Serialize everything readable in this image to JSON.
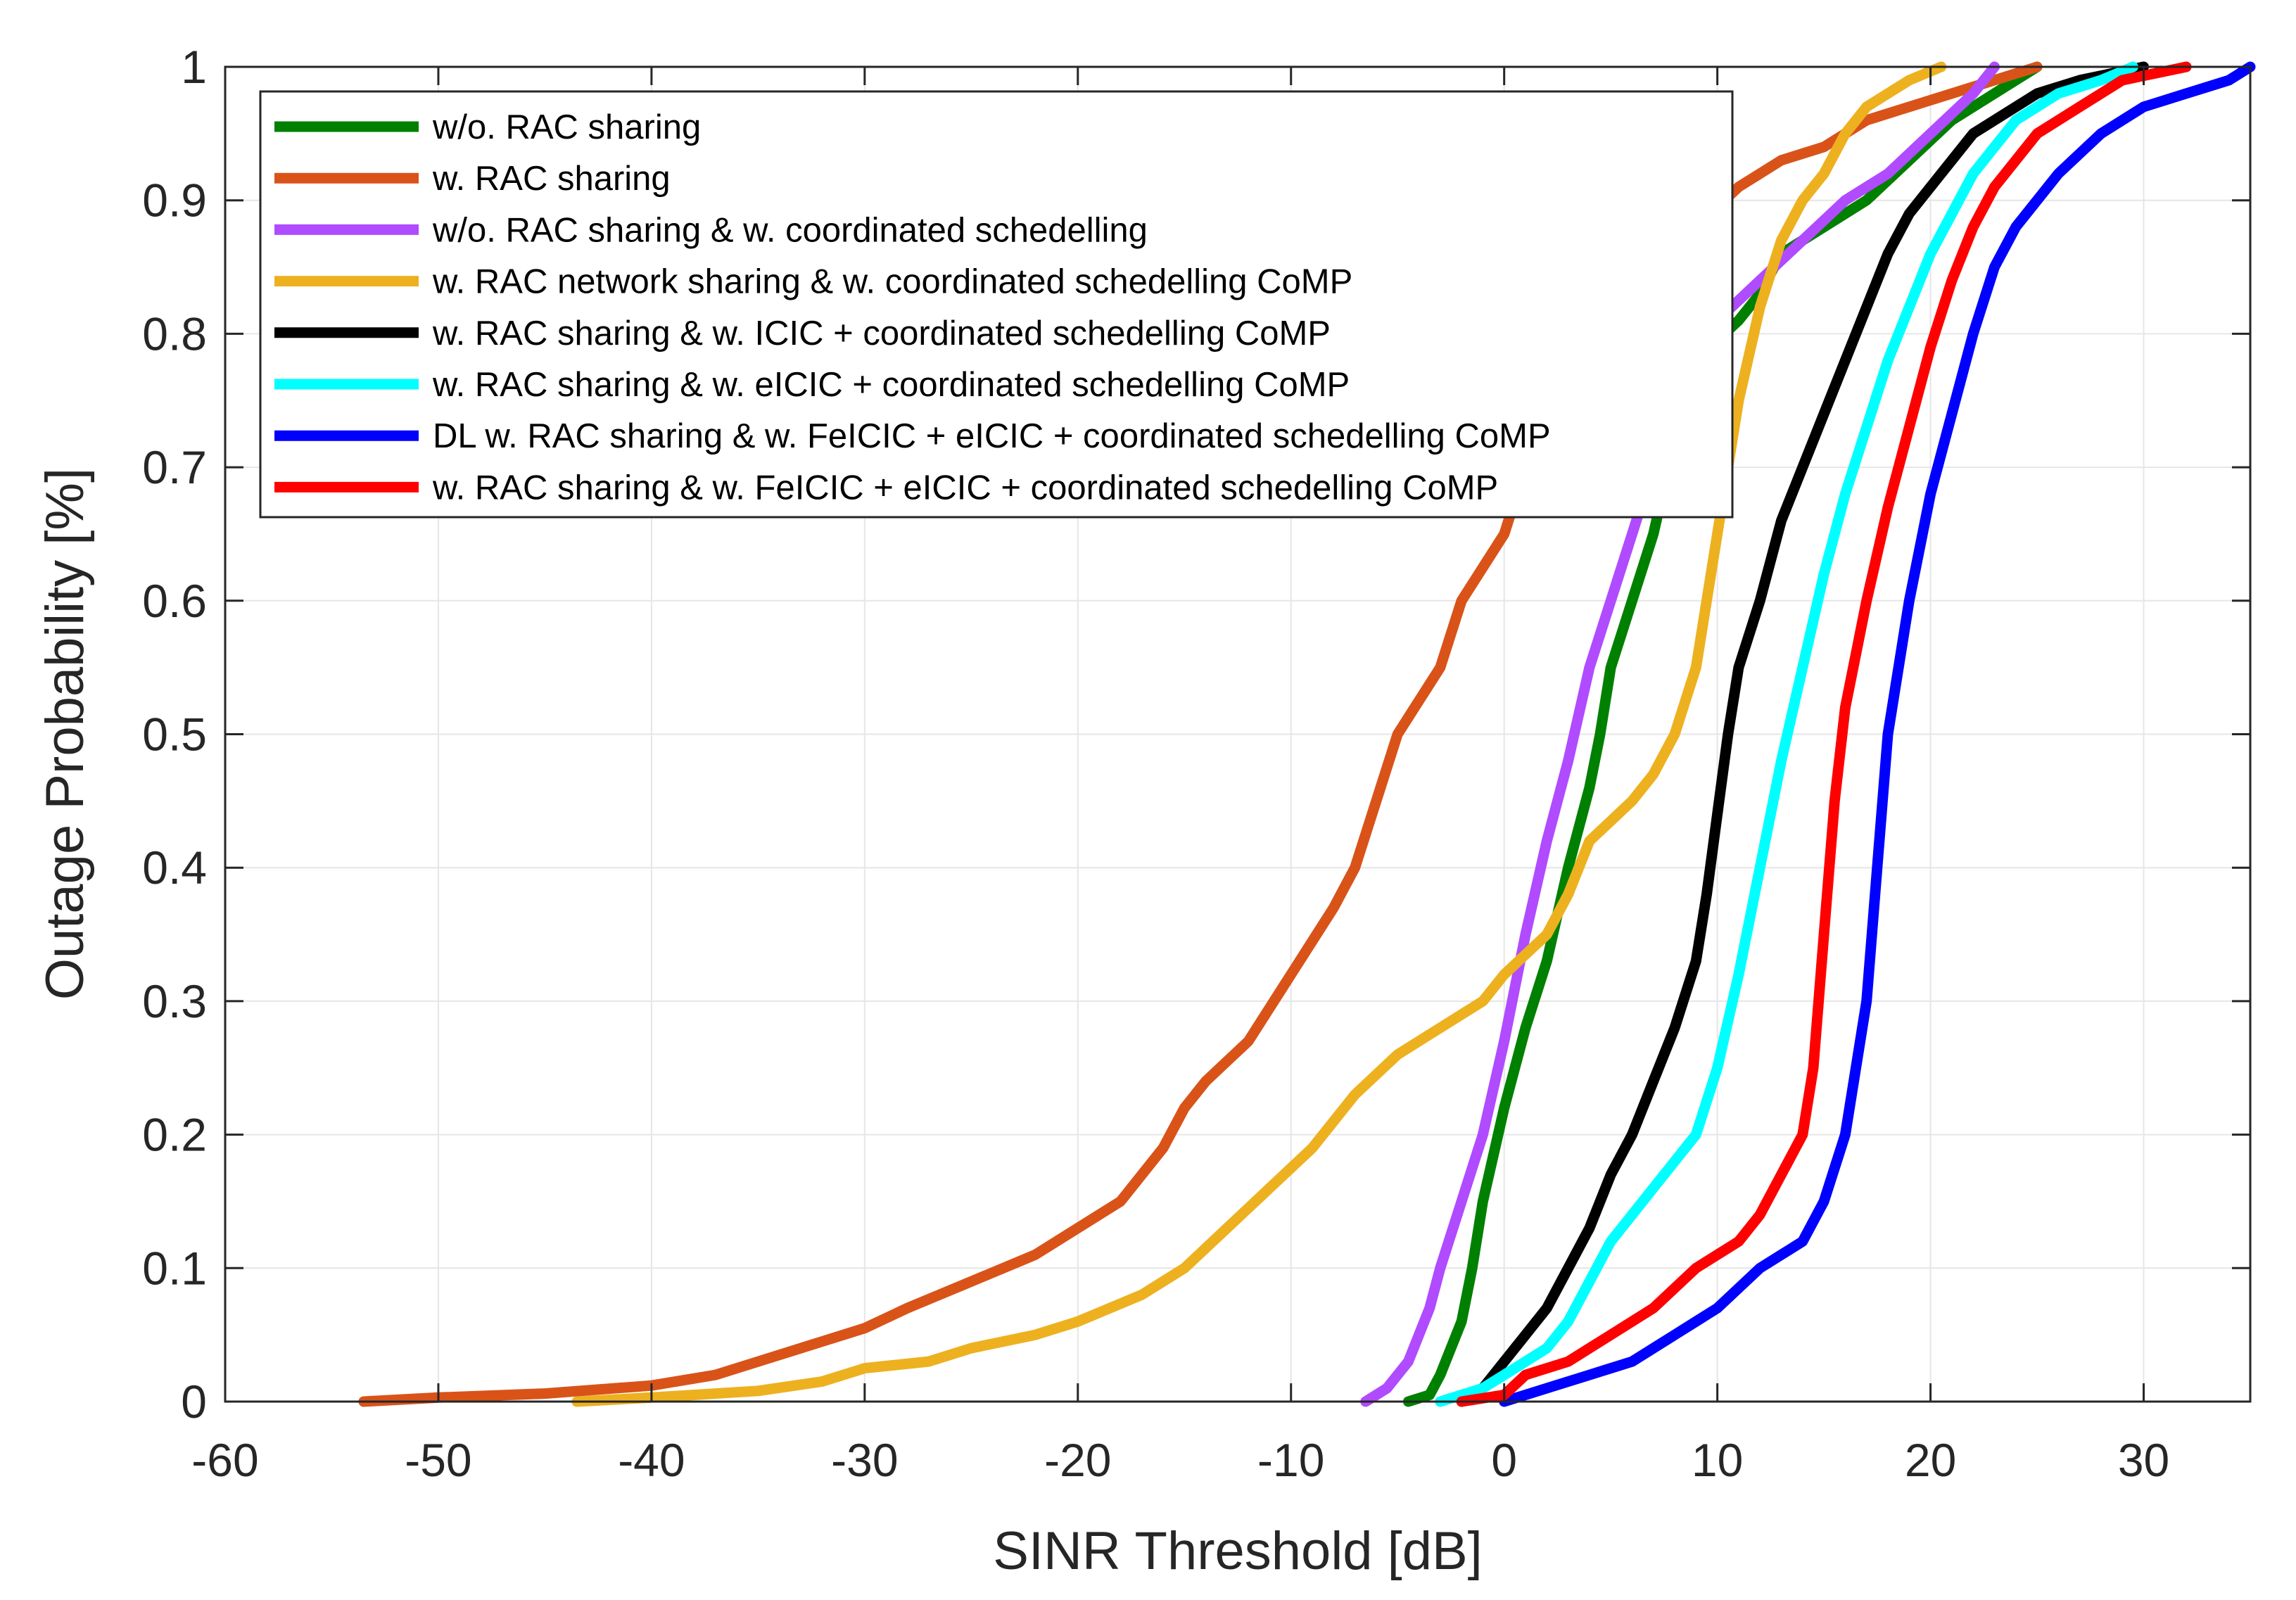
{
  "chart_data": {
    "type": "line",
    "xlabel": "SINR Threshold [dB]",
    "ylabel": "Outage Probability [%]",
    "xlim": [
      -60,
      35
    ],
    "ylim": [
      0,
      1
    ],
    "xticks": [
      -60,
      -50,
      -40,
      -30,
      -20,
      -10,
      0,
      10,
      20,
      30
    ],
    "yticks": [
      0,
      0.1,
      0.2,
      0.3,
      0.4,
      0.5,
      0.6,
      0.7,
      0.8,
      0.9,
      1
    ],
    "xtick_labels": [
      "-60",
      "-50",
      "-40",
      "-30",
      "-20",
      "-10",
      "0",
      "10",
      "20",
      "30"
    ],
    "ytick_labels": [
      "0",
      "0.1",
      "0.2",
      "0.3",
      "0.4",
      "0.5",
      "0.6",
      "0.7",
      "0.8",
      "0.9",
      "1"
    ],
    "grid": true,
    "legend_position": "top-left",
    "series": [
      {
        "name": "w/o. RAC sharing",
        "color": "#008000",
        "points": [
          [
            -4.5,
            0
          ],
          [
            -3.5,
            0.005
          ],
          [
            -3,
            0.02
          ],
          [
            -2,
            0.06
          ],
          [
            -1.5,
            0.1
          ],
          [
            -1,
            0.15
          ],
          [
            0,
            0.22
          ],
          [
            1,
            0.28
          ],
          [
            2,
            0.33
          ],
          [
            3,
            0.4
          ],
          [
            4,
            0.46
          ],
          [
            4.5,
            0.5
          ],
          [
            5,
            0.55
          ],
          [
            6,
            0.6
          ],
          [
            7,
            0.65
          ],
          [
            8,
            0.72
          ],
          [
            9,
            0.78
          ],
          [
            11,
            0.81
          ],
          [
            12,
            0.83
          ],
          [
            13,
            0.86
          ],
          [
            15,
            0.88
          ],
          [
            17,
            0.9
          ],
          [
            19,
            0.93
          ],
          [
            21,
            0.96
          ],
          [
            23,
            0.98
          ],
          [
            25,
            1.0
          ]
        ]
      },
      {
        "name": "w. RAC sharing",
        "color": "#D95319",
        "points": [
          [
            -53.5,
            0
          ],
          [
            -50,
            0.003
          ],
          [
            -45,
            0.006
          ],
          [
            -40,
            0.012
          ],
          [
            -37,
            0.02
          ],
          [
            -35,
            0.03
          ],
          [
            -32,
            0.045
          ],
          [
            -30,
            0.055
          ],
          [
            -28,
            0.07
          ],
          [
            -25,
            0.09
          ],
          [
            -22,
            0.11
          ],
          [
            -20,
            0.13
          ],
          [
            -18,
            0.15
          ],
          [
            -16,
            0.19
          ],
          [
            -15,
            0.22
          ],
          [
            -14,
            0.24
          ],
          [
            -12,
            0.27
          ],
          [
            -10,
            0.32
          ],
          [
            -8,
            0.37
          ],
          [
            -7,
            0.4
          ],
          [
            -6,
            0.45
          ],
          [
            -5,
            0.5
          ],
          [
            -3,
            0.55
          ],
          [
            -2,
            0.6
          ],
          [
            0,
            0.65
          ],
          [
            1,
            0.7
          ],
          [
            2,
            0.75
          ],
          [
            3,
            0.78
          ],
          [
            5,
            0.82
          ],
          [
            7,
            0.85
          ],
          [
            9,
            0.88
          ],
          [
            11,
            0.91
          ],
          [
            13,
            0.93
          ],
          [
            15,
            0.94
          ],
          [
            17,
            0.96
          ],
          [
            19,
            0.97
          ],
          [
            21,
            0.98
          ],
          [
            23,
            0.99
          ],
          [
            25,
            1.0
          ]
        ]
      },
      {
        "name": "w/o. RAC sharing & w. coordinated schedelling",
        "color": "#B04BFF",
        "points": [
          [
            -6.5,
            0
          ],
          [
            -5.5,
            0.01
          ],
          [
            -4.5,
            0.03
          ],
          [
            -3.5,
            0.07
          ],
          [
            -3,
            0.1
          ],
          [
            -2,
            0.15
          ],
          [
            -1,
            0.2
          ],
          [
            0,
            0.27
          ],
          [
            1,
            0.35
          ],
          [
            2,
            0.42
          ],
          [
            3,
            0.48
          ],
          [
            4,
            0.55
          ],
          [
            5,
            0.6
          ],
          [
            6,
            0.65
          ],
          [
            7,
            0.7
          ],
          [
            8,
            0.75
          ],
          [
            9,
            0.78
          ],
          [
            10,
            0.81
          ],
          [
            12,
            0.84
          ],
          [
            14,
            0.87
          ],
          [
            16,
            0.9
          ],
          [
            18,
            0.92
          ],
          [
            20,
            0.95
          ],
          [
            22,
            0.98
          ],
          [
            23,
            1.0
          ]
        ]
      },
      {
        "name": "w. RAC network sharing & w. coordinated schedelling CoMP",
        "color": "#EDB120",
        "points": [
          [
            -43.5,
            0
          ],
          [
            -40,
            0.003
          ],
          [
            -35,
            0.008
          ],
          [
            -32,
            0.015
          ],
          [
            -30,
            0.025
          ],
          [
            -27,
            0.03
          ],
          [
            -25,
            0.04
          ],
          [
            -22,
            0.05
          ],
          [
            -20,
            0.06
          ],
          [
            -17,
            0.08
          ],
          [
            -15,
            0.1
          ],
          [
            -13,
            0.13
          ],
          [
            -11,
            0.16
          ],
          [
            -9,
            0.19
          ],
          [
            -7,
            0.23
          ],
          [
            -5,
            0.26
          ],
          [
            -3,
            0.28
          ],
          [
            -1,
            0.3
          ],
          [
            0,
            0.32
          ],
          [
            2,
            0.35
          ],
          [
            3,
            0.38
          ],
          [
            4,
            0.42
          ],
          [
            6,
            0.45
          ],
          [
            7,
            0.47
          ],
          [
            8,
            0.5
          ],
          [
            9,
            0.55
          ],
          [
            10,
            0.65
          ],
          [
            11,
            0.75
          ],
          [
            12,
            0.82
          ],
          [
            13,
            0.87
          ],
          [
            14,
            0.9
          ],
          [
            15,
            0.92
          ],
          [
            16,
            0.95
          ],
          [
            17,
            0.97
          ],
          [
            19,
            0.99
          ],
          [
            20.5,
            1.0
          ]
        ]
      },
      {
        "name": "w. RAC sharing & w. ICIC + coordinated schedelling CoMP",
        "color": "#000000",
        "points": [
          [
            -2,
            0
          ],
          [
            -1,
            0.01
          ],
          [
            0,
            0.03
          ],
          [
            1,
            0.05
          ],
          [
            2,
            0.07
          ],
          [
            3,
            0.1
          ],
          [
            4,
            0.13
          ],
          [
            5,
            0.17
          ],
          [
            6,
            0.2
          ],
          [
            7,
            0.24
          ],
          [
            8,
            0.28
          ],
          [
            9,
            0.33
          ],
          [
            9.5,
            0.38
          ],
          [
            10,
            0.44
          ],
          [
            10.5,
            0.5
          ],
          [
            11,
            0.55
          ],
          [
            12,
            0.6
          ],
          [
            13,
            0.66
          ],
          [
            14,
            0.7
          ],
          [
            15,
            0.74
          ],
          [
            16,
            0.78
          ],
          [
            17,
            0.82
          ],
          [
            18,
            0.86
          ],
          [
            19,
            0.89
          ],
          [
            20,
            0.91
          ],
          [
            21,
            0.93
          ],
          [
            22,
            0.95
          ],
          [
            23,
            0.96
          ],
          [
            24,
            0.97
          ],
          [
            25,
            0.98
          ],
          [
            27,
            0.99
          ],
          [
            30,
            1.0
          ]
        ]
      },
      {
        "name": "w. RAC sharing & w. eICIC + coordinated schedelling CoMP",
        "color": "#00FFFF",
        "points": [
          [
            -3,
            0
          ],
          [
            -1,
            0.01
          ],
          [
            0,
            0.02
          ],
          [
            2,
            0.04
          ],
          [
            3,
            0.06
          ],
          [
            4,
            0.09
          ],
          [
            5,
            0.12
          ],
          [
            6,
            0.14
          ],
          [
            7,
            0.16
          ],
          [
            8,
            0.18
          ],
          [
            9,
            0.2
          ],
          [
            10,
            0.25
          ],
          [
            11,
            0.32
          ],
          [
            12,
            0.4
          ],
          [
            13,
            0.48
          ],
          [
            14,
            0.55
          ],
          [
            15,
            0.62
          ],
          [
            16,
            0.68
          ],
          [
            17,
            0.73
          ],
          [
            18,
            0.78
          ],
          [
            19,
            0.82
          ],
          [
            20,
            0.86
          ],
          [
            21,
            0.89
          ],
          [
            22,
            0.92
          ],
          [
            23,
            0.94
          ],
          [
            24,
            0.96
          ],
          [
            25,
            0.97
          ],
          [
            26,
            0.98
          ],
          [
            28,
            0.99
          ],
          [
            29.5,
            1.0
          ]
        ]
      },
      {
        "name": "DL w. RAC sharing & w. FeICIC + eICIC + coordinated schedelling CoMP",
        "color": "#0000FF",
        "points": [
          [
            0,
            0
          ],
          [
            2,
            0.01
          ],
          [
            4,
            0.02
          ],
          [
            6,
            0.03
          ],
          [
            8,
            0.05
          ],
          [
            10,
            0.07
          ],
          [
            12,
            0.1
          ],
          [
            14,
            0.12
          ],
          [
            15,
            0.15
          ],
          [
            16,
            0.2
          ],
          [
            17,
            0.3
          ],
          [
            17.5,
            0.4
          ],
          [
            18,
            0.5
          ],
          [
            19,
            0.6
          ],
          [
            20,
            0.68
          ],
          [
            21,
            0.74
          ],
          [
            22,
            0.8
          ],
          [
            23,
            0.85
          ],
          [
            24,
            0.88
          ],
          [
            26,
            0.92
          ],
          [
            28,
            0.95
          ],
          [
            30,
            0.97
          ],
          [
            32,
            0.98
          ],
          [
            34,
            0.99
          ],
          [
            35,
            1.0
          ]
        ]
      },
      {
        "name": "w. RAC sharing & w. FeICIC + eICIC + coordinated schedelling CoMP",
        "color": "#FF0000",
        "points": [
          [
            -2,
            0
          ],
          [
            0,
            0.005
          ],
          [
            1,
            0.02
          ],
          [
            3,
            0.03
          ],
          [
            5,
            0.05
          ],
          [
            7,
            0.07
          ],
          [
            9,
            0.1
          ],
          [
            11,
            0.12
          ],
          [
            12,
            0.14
          ],
          [
            13,
            0.17
          ],
          [
            14,
            0.2
          ],
          [
            14.5,
            0.25
          ],
          [
            15,
            0.35
          ],
          [
            15.5,
            0.45
          ],
          [
            16,
            0.52
          ],
          [
            17,
            0.6
          ],
          [
            18,
            0.67
          ],
          [
            19,
            0.73
          ],
          [
            20,
            0.79
          ],
          [
            21,
            0.84
          ],
          [
            22,
            0.88
          ],
          [
            23,
            0.91
          ],
          [
            25,
            0.95
          ],
          [
            27,
            0.97
          ],
          [
            29,
            0.99
          ],
          [
            32,
            1.0
          ]
        ]
      }
    ]
  }
}
